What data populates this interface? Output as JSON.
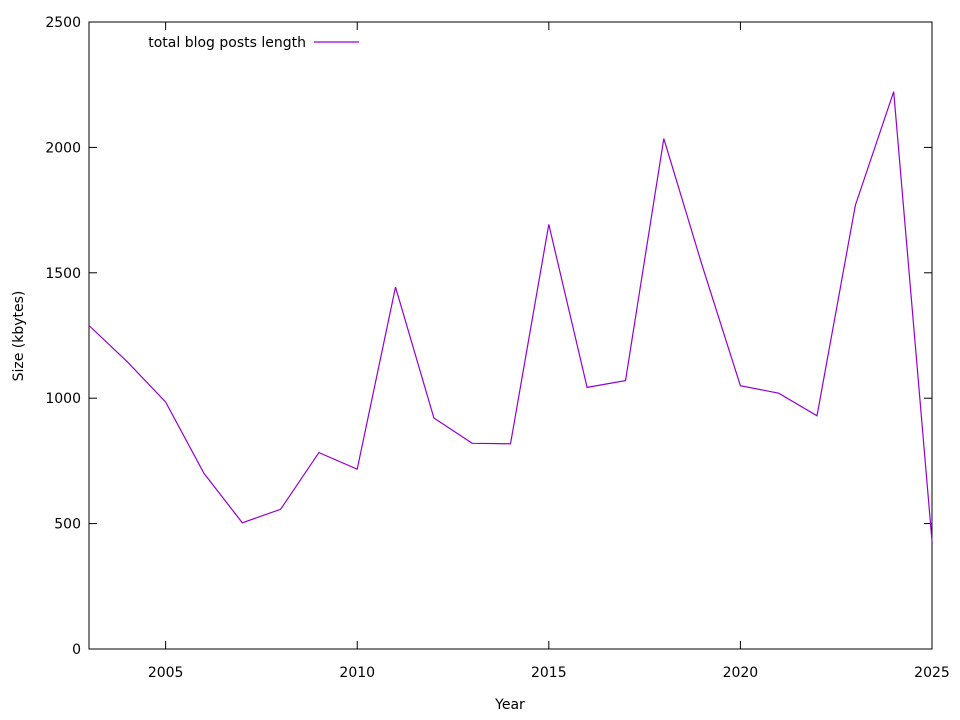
{
  "chart_data": {
    "type": "line",
    "title": "",
    "xlabel": "Year",
    "ylabel": "Size (kbytes)",
    "xlim": [
      2003,
      2025
    ],
    "ylim": [
      0,
      2500
    ],
    "xticks": [
      2005,
      2010,
      2015,
      2020,
      2025
    ],
    "yticks": [
      0,
      500,
      1000,
      1500,
      2000,
      2500
    ],
    "grid": false,
    "legend": "top-left",
    "series": [
      {
        "name": "total blog posts length",
        "color": "#9400d3",
        "x": [
          2003,
          2004,
          2005,
          2006,
          2007,
          2008,
          2009,
          2010,
          2011,
          2012,
          2013,
          2014,
          2015,
          2016,
          2017,
          2018,
          2019,
          2020,
          2021,
          2022,
          2023,
          2024,
          2025
        ],
        "y": [
          1290,
          1145,
          985,
          700,
          503,
          557,
          783,
          717,
          1443,
          921,
          820,
          818,
          1693,
          1043,
          1070,
          2035,
          1530,
          1050,
          1020,
          930,
          1770,
          2222,
          430
        ]
      }
    ]
  }
}
